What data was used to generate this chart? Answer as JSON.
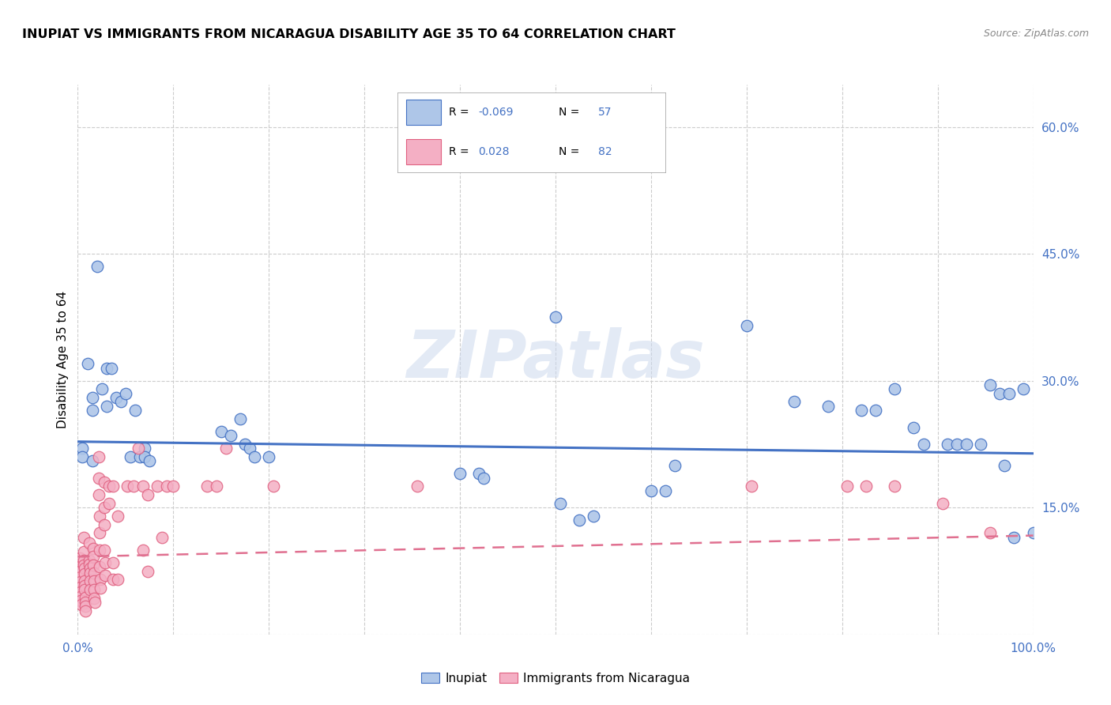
{
  "title": "INUPIAT VS IMMIGRANTS FROM NICARAGUA DISABILITY AGE 35 TO 64 CORRELATION CHART",
  "source": "Source: ZipAtlas.com",
  "ylabel": "Disability Age 35 to 64",
  "xlim": [
    0,
    1.0
  ],
  "ylim": [
    0,
    0.65
  ],
  "xticks": [
    0.0,
    0.1,
    0.2,
    0.3,
    0.4,
    0.5,
    0.6,
    0.7,
    0.8,
    0.9,
    1.0
  ],
  "xticklabels": [
    "0.0%",
    "",
    "",
    "",
    "",
    "",
    "",
    "",
    "",
    "",
    "100.0%"
  ],
  "ytick_positions": [
    0.0,
    0.15,
    0.3,
    0.45,
    0.6
  ],
  "ytick_labels": [
    "",
    "15.0%",
    "30.0%",
    "45.0%",
    "60.0%"
  ],
  "inupiat_color": "#aec6e8",
  "inupiat_edge_color": "#4472C4",
  "nicaragua_color": "#f4afc4",
  "nicaragua_edge_color": "#e06080",
  "inupiat_line_color": "#4472C4",
  "nicaragua_line_color": "#e07090",
  "watermark": "ZIPatlas",
  "legend_r1_label": "R = ",
  "legend_r1_val": "-0.069",
  "legend_n1_label": "N = ",
  "legend_n1_val": "57",
  "legend_r2_label": "R =  ",
  "legend_r2_val": "0.028",
  "legend_n2_label": "N = ",
  "legend_n2_val": "82",
  "inupiat_points": [
    [
      0.005,
      0.22
    ],
    [
      0.005,
      0.21
    ],
    [
      0.01,
      0.32
    ],
    [
      0.015,
      0.28
    ],
    [
      0.015,
      0.265
    ],
    [
      0.015,
      0.205
    ],
    [
      0.02,
      0.435
    ],
    [
      0.025,
      0.29
    ],
    [
      0.03,
      0.315
    ],
    [
      0.03,
      0.27
    ],
    [
      0.035,
      0.315
    ],
    [
      0.04,
      0.28
    ],
    [
      0.045,
      0.275
    ],
    [
      0.05,
      0.285
    ],
    [
      0.055,
      0.21
    ],
    [
      0.06,
      0.265
    ],
    [
      0.065,
      0.21
    ],
    [
      0.07,
      0.22
    ],
    [
      0.07,
      0.21
    ],
    [
      0.075,
      0.205
    ],
    [
      0.15,
      0.24
    ],
    [
      0.16,
      0.235
    ],
    [
      0.17,
      0.255
    ],
    [
      0.175,
      0.225
    ],
    [
      0.18,
      0.22
    ],
    [
      0.185,
      0.21
    ],
    [
      0.2,
      0.21
    ],
    [
      0.35,
      0.575
    ],
    [
      0.4,
      0.19
    ],
    [
      0.42,
      0.19
    ],
    [
      0.425,
      0.185
    ],
    [
      0.5,
      0.375
    ],
    [
      0.505,
      0.155
    ],
    [
      0.525,
      0.135
    ],
    [
      0.54,
      0.14
    ],
    [
      0.6,
      0.17
    ],
    [
      0.615,
      0.17
    ],
    [
      0.625,
      0.2
    ],
    [
      0.7,
      0.365
    ],
    [
      0.75,
      0.275
    ],
    [
      0.785,
      0.27
    ],
    [
      0.82,
      0.265
    ],
    [
      0.835,
      0.265
    ],
    [
      0.855,
      0.29
    ],
    [
      0.875,
      0.245
    ],
    [
      0.885,
      0.225
    ],
    [
      0.91,
      0.225
    ],
    [
      0.92,
      0.225
    ],
    [
      0.93,
      0.225
    ],
    [
      0.945,
      0.225
    ],
    [
      0.955,
      0.295
    ],
    [
      0.965,
      0.285
    ],
    [
      0.97,
      0.2
    ],
    [
      0.975,
      0.285
    ],
    [
      0.98,
      0.115
    ],
    [
      0.99,
      0.29
    ],
    [
      1.0,
      0.12
    ]
  ],
  "nicaragua_points": [
    [
      0.002,
      0.09
    ],
    [
      0.002,
      0.08
    ],
    [
      0.002,
      0.075
    ],
    [
      0.003,
      0.068
    ],
    [
      0.003,
      0.062
    ],
    [
      0.003,
      0.056
    ],
    [
      0.003,
      0.05
    ],
    [
      0.003,
      0.045
    ],
    [
      0.003,
      0.04
    ],
    [
      0.004,
      0.035
    ],
    [
      0.006,
      0.115
    ],
    [
      0.006,
      0.098
    ],
    [
      0.006,
      0.088
    ],
    [
      0.006,
      0.082
    ],
    [
      0.007,
      0.078
    ],
    [
      0.007,
      0.072
    ],
    [
      0.007,
      0.063
    ],
    [
      0.007,
      0.058
    ],
    [
      0.007,
      0.053
    ],
    [
      0.008,
      0.044
    ],
    [
      0.008,
      0.038
    ],
    [
      0.008,
      0.033
    ],
    [
      0.008,
      0.028
    ],
    [
      0.012,
      0.108
    ],
    [
      0.012,
      0.088
    ],
    [
      0.012,
      0.083
    ],
    [
      0.013,
      0.078
    ],
    [
      0.013,
      0.073
    ],
    [
      0.013,
      0.063
    ],
    [
      0.013,
      0.053
    ],
    [
      0.016,
      0.102
    ],
    [
      0.016,
      0.092
    ],
    [
      0.016,
      0.082
    ],
    [
      0.017,
      0.073
    ],
    [
      0.017,
      0.063
    ],
    [
      0.017,
      0.053
    ],
    [
      0.017,
      0.043
    ],
    [
      0.018,
      0.038
    ],
    [
      0.022,
      0.21
    ],
    [
      0.022,
      0.185
    ],
    [
      0.022,
      0.165
    ],
    [
      0.023,
      0.14
    ],
    [
      0.023,
      0.12
    ],
    [
      0.023,
      0.1
    ],
    [
      0.023,
      0.08
    ],
    [
      0.024,
      0.065
    ],
    [
      0.024,
      0.055
    ],
    [
      0.028,
      0.18
    ],
    [
      0.028,
      0.15
    ],
    [
      0.028,
      0.13
    ],
    [
      0.028,
      0.1
    ],
    [
      0.029,
      0.085
    ],
    [
      0.029,
      0.07
    ],
    [
      0.033,
      0.175
    ],
    [
      0.033,
      0.155
    ],
    [
      0.037,
      0.175
    ],
    [
      0.037,
      0.085
    ],
    [
      0.037,
      0.065
    ],
    [
      0.042,
      0.14
    ],
    [
      0.042,
      0.065
    ],
    [
      0.052,
      0.175
    ],
    [
      0.058,
      0.175
    ],
    [
      0.063,
      0.22
    ],
    [
      0.068,
      0.175
    ],
    [
      0.068,
      0.1
    ],
    [
      0.073,
      0.165
    ],
    [
      0.073,
      0.075
    ],
    [
      0.083,
      0.175
    ],
    [
      0.088,
      0.115
    ],
    [
      0.093,
      0.175
    ],
    [
      0.1,
      0.175
    ],
    [
      0.135,
      0.175
    ],
    [
      0.145,
      0.175
    ],
    [
      0.155,
      0.22
    ],
    [
      0.205,
      0.175
    ],
    [
      0.355,
      0.175
    ],
    [
      0.705,
      0.175
    ],
    [
      0.805,
      0.175
    ],
    [
      0.825,
      0.175
    ],
    [
      0.855,
      0.175
    ],
    [
      0.905,
      0.155
    ],
    [
      0.955,
      0.12
    ]
  ],
  "inupiat_trend": [
    0.0,
    0.228,
    1.0,
    0.214
  ],
  "nicaragua_trend": [
    0.0,
    0.092,
    1.0,
    0.117
  ]
}
